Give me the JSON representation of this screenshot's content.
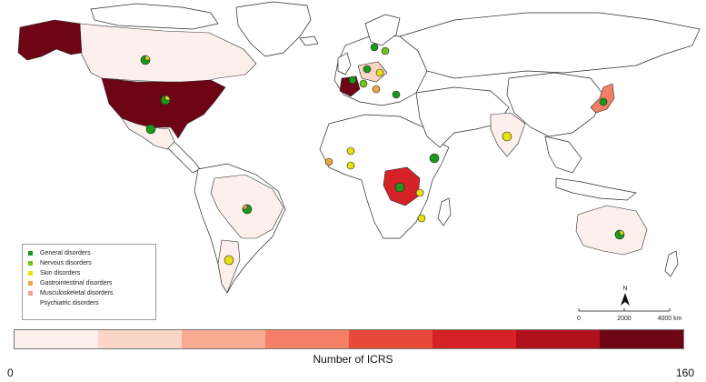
{
  "map": {
    "legend": {
      "items": [
        {
          "label": "General disorders",
          "color": "#1a9a1a"
        },
        {
          "label": "Nervous disorders",
          "color": "#6fc21e"
        },
        {
          "label": "Skin disorders",
          "color": "#e4e20e"
        },
        {
          "label": "Gastrointestinal disorders",
          "color": "#e8a848"
        },
        {
          "label": "Musculoskeletal disorders",
          "color": "#f0a090"
        },
        {
          "label": "Psychiatric disorders",
          "color": "#ffffff"
        }
      ]
    },
    "colorbar": {
      "caption": "Number of ICRS",
      "min_label": "0",
      "max_label": "160",
      "colors": [
        "#fdf0ec",
        "#fbd5c6",
        "#f9ab92",
        "#f47f66",
        "#e9493b",
        "#d52226",
        "#b0111b",
        "#6d0515"
      ]
    },
    "scale_bar": {
      "north_label": "N",
      "ticks": [
        "0",
        "2000",
        "4000 km"
      ]
    },
    "countries": {
      "usa": {
        "color": "#6d0515"
      },
      "alaska": {
        "color": "#6d0515"
      },
      "canada": {
        "color": "#fdf0ec"
      },
      "mexico": {
        "color": "#fdf0ec"
      },
      "france": {
        "color": "#6d0515"
      },
      "drc": {
        "color": "#d52226"
      },
      "japan": {
        "color": "#f47f66"
      },
      "brazil": {
        "color": "#fdf0ec"
      },
      "argentina": {
        "color": "#fdf0ec"
      },
      "australia": {
        "color": "#fdf0ec"
      },
      "india": {
        "color": "#fdf0ec"
      },
      "europe_light": {
        "color": "#fbd5c6"
      }
    }
  }
}
